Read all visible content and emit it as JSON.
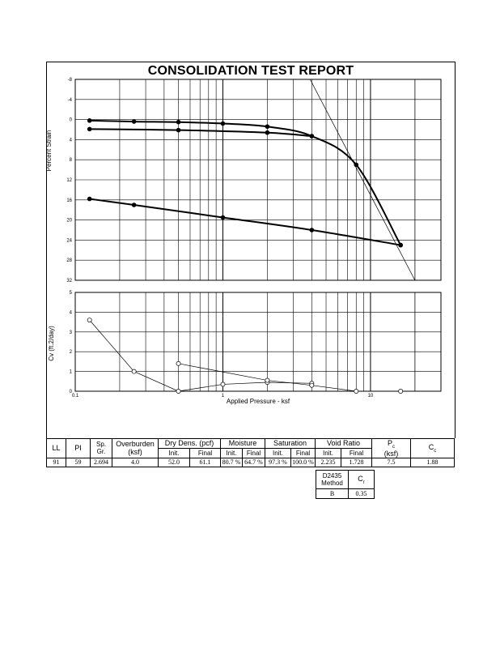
{
  "report": {
    "title": "CONSOLIDATION TEST REPORT"
  },
  "chart_data": [
    {
      "type": "line",
      "ylabel": "Percent Strain",
      "x_scale": "log",
      "xlim": [
        0.1,
        30
      ],
      "ylim": [
        -8,
        32
      ],
      "y_inverted": true,
      "x_ticks": [
        "0.1",
        "1",
        "10"
      ],
      "y_ticks": [
        "-8",
        "-4",
        "0",
        "4",
        "8",
        "12",
        "16",
        "20",
        "24",
        "28",
        "32"
      ],
      "grid": true,
      "series": [
        {
          "values": [
            [
              0.125,
              0.2
            ],
            [
              0.25,
              0.4
            ],
            [
              0.5,
              0.5
            ],
            [
              1,
              0.8
            ],
            [
              2,
              1.4
            ],
            [
              4,
              3.3
            ],
            [
              8,
              9
            ],
            [
              16,
              25
            ]
          ]
        },
        {
          "values": [
            [
              0.125,
              1.9
            ],
            [
              0.5,
              2.1
            ],
            [
              2,
              2.6
            ],
            [
              4,
              3.3
            ]
          ]
        },
        {
          "values": [
            [
              0.125,
              15.8
            ],
            [
              0.25,
              17
            ],
            [
              1,
              19.5
            ],
            [
              4,
              22
            ],
            [
              16,
              25
            ]
          ]
        }
      ],
      "annotations": [
        {
          "kind": "construction-line",
          "from": [
            3.9,
            -8
          ],
          "to": [
            20,
            32
          ]
        }
      ]
    },
    {
      "type": "line",
      "xlabel": "Applied Pressure - ksf",
      "ylabel": "Cv (ft.2/day)",
      "x_scale": "log",
      "xlim": [
        0.1,
        30
      ],
      "ylim": [
        0,
        5
      ],
      "x_ticks": [
        "0.1",
        "1",
        "10"
      ],
      "y_ticks": [
        "0",
        "1",
        "2",
        "3",
        "4",
        "5"
      ],
      "grid": true,
      "series": [
        {
          "values": [
            [
              0.125,
              3.6
            ],
            [
              0.25,
              1.0
            ],
            [
              0.5,
              0.0
            ],
            [
              1,
              0.35
            ],
            [
              2,
              0.45
            ],
            [
              4,
              0.4
            ]
          ]
        },
        {
          "values": [
            [
              0.5,
              1.4
            ],
            [
              2,
              0.55
            ],
            [
              4,
              0.3
            ],
            [
              8,
              0.0
            ],
            [
              16,
              0.0
            ]
          ]
        }
      ]
    }
  ],
  "properties": {
    "headers": {
      "ll": "LL",
      "pi": "PI",
      "spgr_1": "Sp.",
      "spgr_2": "Gr.",
      "overburden_1": "Overburden",
      "overburden_2": "(ksf)",
      "dry_dens": "Dry Dens. (pcf)",
      "moisture": "Moisture",
      "saturation": "Saturation",
      "void_ratio": "Void Ratio",
      "pc": "P",
      "pc_sub": "c",
      "pc_unit": "(ksf)",
      "cc": "C",
      "cc_sub": "c",
      "init": "Init.",
      "final": "Final"
    },
    "values": {
      "ll": "91",
      "pi": "59",
      "spgr": "2.694",
      "overburden": "4.0",
      "dry_init": "52.0",
      "dry_final": "61.1",
      "moist_init": "80.7 %",
      "moist_final": "64.7 %",
      "sat_init": "97.3 %",
      "sat_final": "100.0 %",
      "void_init": "2.235",
      "void_final": "1.728",
      "pc": "7.5",
      "cc": "1.88"
    }
  },
  "method_table": {
    "method_1": "D2435",
    "method_2": "Method",
    "cr": "C",
    "cr_sub": "r",
    "method_value": "B",
    "cr_value": "0.35"
  }
}
